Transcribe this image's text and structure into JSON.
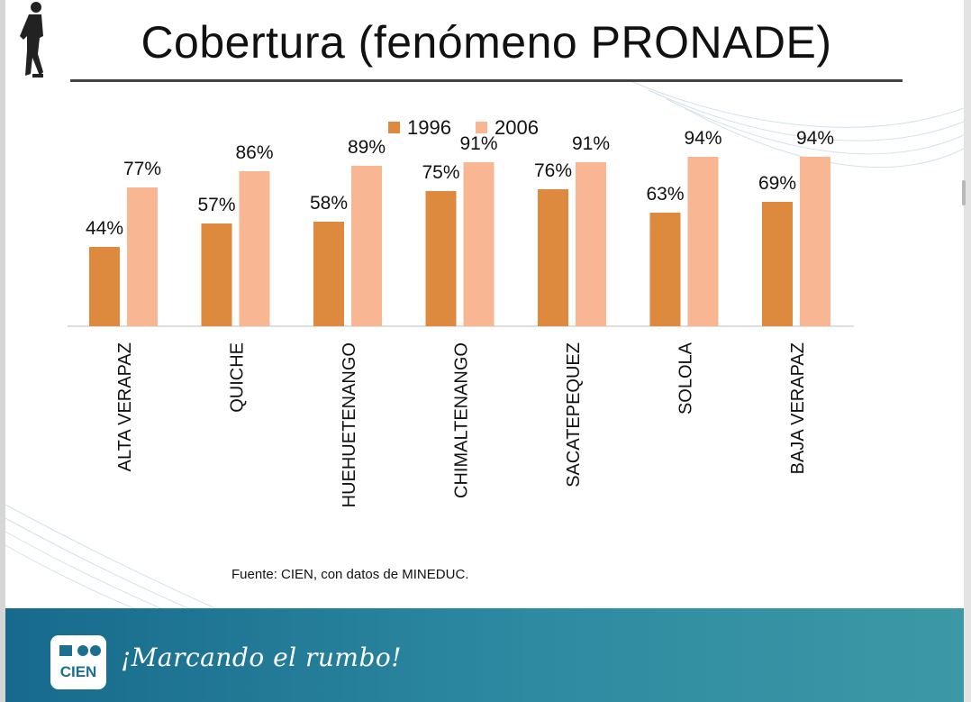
{
  "slide": {
    "title": "Cobertura (fenómeno PRONADE)",
    "source": "Fuente: CIEN, con datos de MINEDUC."
  },
  "footer": {
    "logo_text": "CIEN",
    "slogan": "¡Marcando el rumbo!"
  },
  "colors": {
    "series_1996": "#de8a3e",
    "series_2006": "#f8b692",
    "footer_start": "#176a8c",
    "footer_end": "#3d98a5"
  },
  "chart_data": {
    "type": "bar",
    "title": "Cobertura (fenómeno PRONADE)",
    "xlabel": "",
    "ylabel": "",
    "ylim": [
      0,
      100
    ],
    "categories": [
      "ALTA VERAPAZ",
      "QUICHE",
      "HUEHUETENANGO",
      "CHIMALTENANGO",
      "SACATEPEQUEZ",
      "SOLOLA",
      "BAJA VERAPAZ"
    ],
    "series": [
      {
        "name": "1996",
        "values": [
          44,
          57,
          58,
          75,
          76,
          63,
          69
        ],
        "labels": [
          "44%",
          "57%",
          "58%",
          "75%",
          "76%",
          "63%",
          "69%"
        ]
      },
      {
        "name": "2006",
        "values": [
          77,
          86,
          89,
          91,
          91,
          94,
          94
        ],
        "labels": [
          "77%",
          "86%",
          "89%",
          "91%",
          "91%",
          "94%",
          "94%"
        ]
      }
    ],
    "legend": "top-center",
    "grid": false
  }
}
